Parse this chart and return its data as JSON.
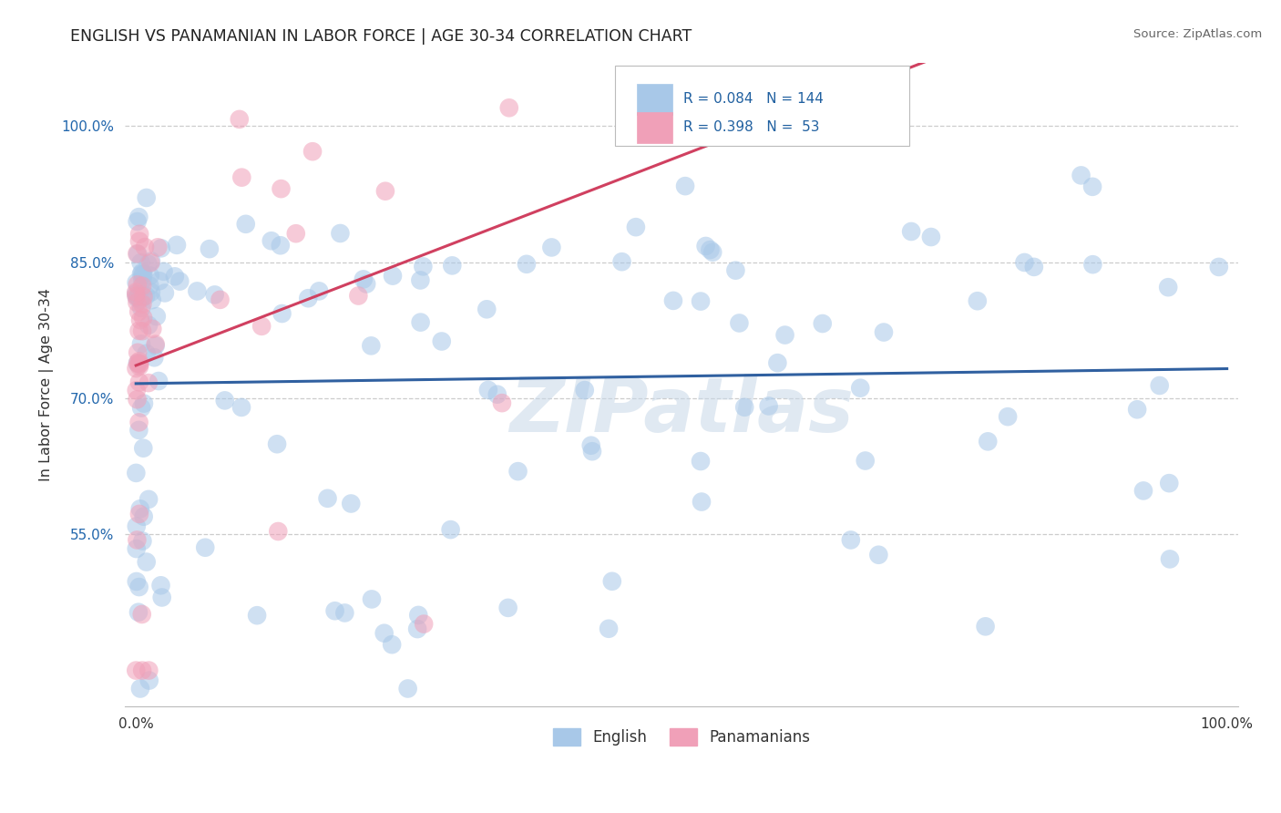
{
  "title": "ENGLISH VS PANAMANIAN IN LABOR FORCE | AGE 30-34 CORRELATION CHART",
  "source_text": "Source: ZipAtlas.com",
  "ylabel": "In Labor Force | Age 30-34",
  "english_R": 0.084,
  "english_N": 144,
  "panama_R": 0.398,
  "panama_N": 53,
  "blue_scatter_color": "#a8c8e8",
  "pink_scatter_color": "#f0a0b8",
  "blue_line_color": "#3060a0",
  "pink_line_color": "#d04060",
  "yticks": [
    0.55,
    0.7,
    0.85,
    1.0
  ],
  "ytick_labels": [
    "55.0%",
    "70.0%",
    "85.0%",
    "100.0%"
  ],
  "xtick_labels": [
    "0.0%",
    "100.0%"
  ],
  "watermark_color": "#c8d8e8",
  "background_color": "#ffffff",
  "legend_english": "English",
  "legend_panama": "Panamanians"
}
